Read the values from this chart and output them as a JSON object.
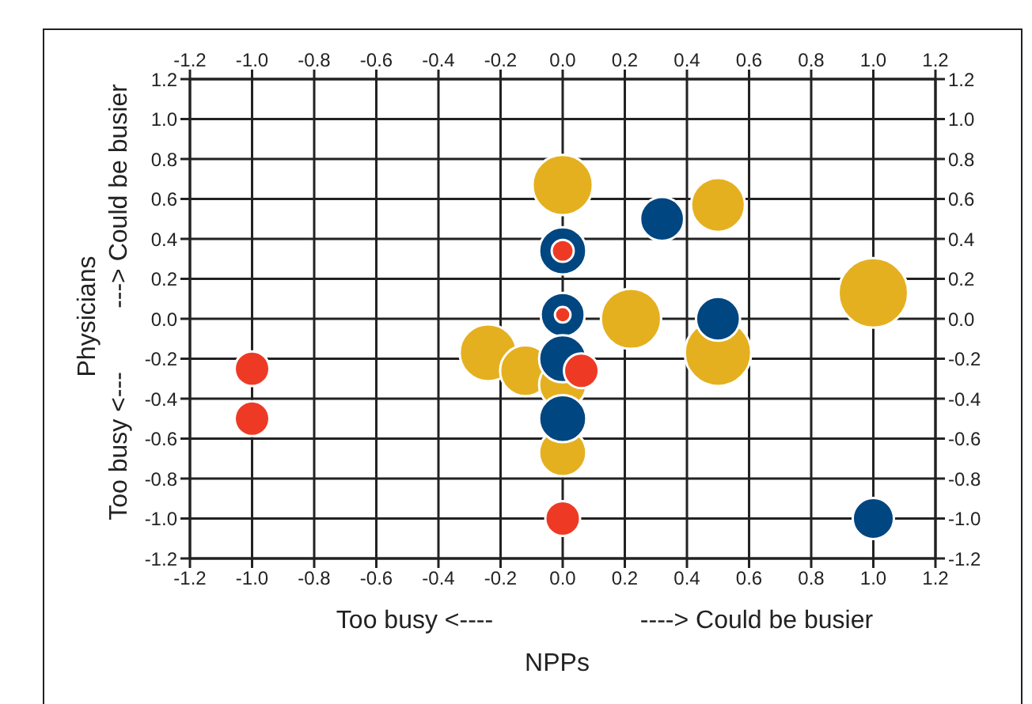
{
  "chart_data": {
    "type": "bubble",
    "relative": false,
    "xlabel": "NPPs",
    "ylabel": "Physicians",
    "annotations": [
      "Too busy <----",
      "----> Could be busier",
      "Too busy <---",
      "---> Could be busier"
    ],
    "series": [
      {
        "color": "#e5b020",
        "x": [
          0.0,
          -0.24,
          -0.12,
          0.0,
          0.0,
          0.22,
          0.5,
          0.5,
          1.0
        ],
        "values": [
          0.67,
          -0.17,
          -0.26,
          -0.33,
          -0.67,
          0.0,
          0.57,
          -0.17,
          0.13
        ],
        "sizes": [
          0.75,
          0.67,
          0.53,
          0.46,
          0.46,
          0.75,
          0.6,
          0.91,
          1
        ]
      },
      {
        "color": "#004680",
        "x": [
          0.0,
          0.0,
          0.0,
          0.0,
          0.32,
          0.5,
          1.0
        ],
        "values": [
          0.34,
          0.02,
          -0.2,
          -0.5,
          0.5,
          0.0,
          -1.0
        ],
        "sizes": [
          0.46,
          0.4,
          0.46,
          0.46,
          0.4,
          0.4,
          0.35
        ]
      },
      {
        "color": "#ee3a24",
        "x": [
          -1.0,
          -1.0,
          0.0,
          0.0,
          0.06,
          0.0
        ],
        "values": [
          -0.25,
          -0.5,
          0.34,
          0.02,
          -0.26,
          -1.0
        ],
        "sizes": [
          0.25,
          0.25,
          0.1,
          0.05,
          0.25,
          0.25
        ]
      }
    ],
    "xlim": [
      -1.2,
      1.2
    ],
    "ylim": [
      -1.2,
      1.2
    ],
    "x2lim": [
      -1.2,
      1.2
    ],
    "y2lim": [
      -1.2,
      1.2
    ],
    "xticks": [
      -1.2,
      {
        "value": -1,
        "label": "-1.0"
      },
      -0.8,
      -0.6,
      -0.4,
      -0.2,
      {
        "value": 0,
        "label": "0.0"
      },
      0.2,
      0.4,
      0.6,
      0.8,
      {
        "value": 1,
        "label": "1.0"
      },
      1.2
    ],
    "x2ticks": [
      -1.2,
      {
        "value": -1,
        "label": "-1.0"
      },
      -0.8,
      -0.6,
      -0.4,
      -0.2,
      {
        "value": 0,
        "label": "0.0"
      },
      0.2,
      0.4,
      0.6,
      0.8,
      {
        "value": 1,
        "label": "1.0"
      },
      1.2
    ],
    "yticks": [
      -1.2,
      {
        "value": -1,
        "label": "-1.0"
      },
      -0.8,
      -0.6,
      -0.4,
      -0.2,
      {
        "value": 0,
        "label": "0.0"
      },
      0.2,
      0.4,
      0.6,
      0.8,
      {
        "value": 1,
        "label": "1.0"
      },
      1.2
    ],
    "y2ticks": [
      -1.2,
      {
        "value": -1,
        "label": "-1.0"
      },
      -0.8,
      -0.6,
      -0.4,
      -0.2,
      {
        "value": 0,
        "label": "0.0"
      },
      0.2,
      0.4,
      0.6,
      0.8,
      {
        "value": 1,
        "label": "1.0"
      },
      1.2
    ],
    "grid": true
  }
}
